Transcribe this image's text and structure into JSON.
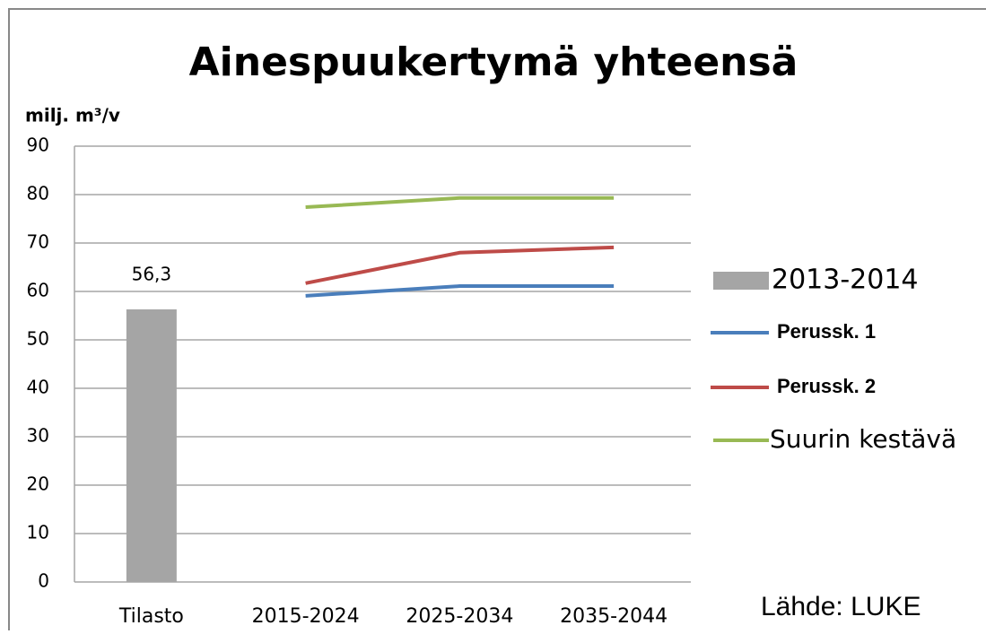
{
  "chart_data": {
    "type": "bar",
    "title": "Ainespuukertymä yhteensä",
    "y_label": "milj. m³/v",
    "source": "Lähde: LUKE",
    "categories": [
      "Tilasto",
      "2015-2024",
      "2025-2034",
      "2035-2044"
    ],
    "series": [
      {
        "name": "2013-2014",
        "type": "bar",
        "color": "#a5a5a5",
        "values": [
          56.3,
          null,
          null,
          null
        ],
        "value_labels": [
          "56,3",
          null,
          null,
          null
        ]
      },
      {
        "name": "Perussk. 1",
        "type": "line",
        "color": "#4a7ebb",
        "values": [
          null,
          59.1,
          61.1,
          61.1
        ]
      },
      {
        "name": "Perussk. 2",
        "type": "line",
        "color": "#be4b48",
        "values": [
          null,
          61.7,
          68,
          69.1
        ]
      },
      {
        "name": "Suurin kestävä",
        "type": "line",
        "color": "#98b954",
        "values": [
          null,
          77.4,
          79.3,
          79.3
        ]
      }
    ],
    "ylim": [
      0,
      90
    ],
    "yticks": [
      0,
      10,
      20,
      30,
      40,
      50,
      60,
      70,
      80,
      90
    ],
    "grid": true,
    "legend": "right"
  }
}
